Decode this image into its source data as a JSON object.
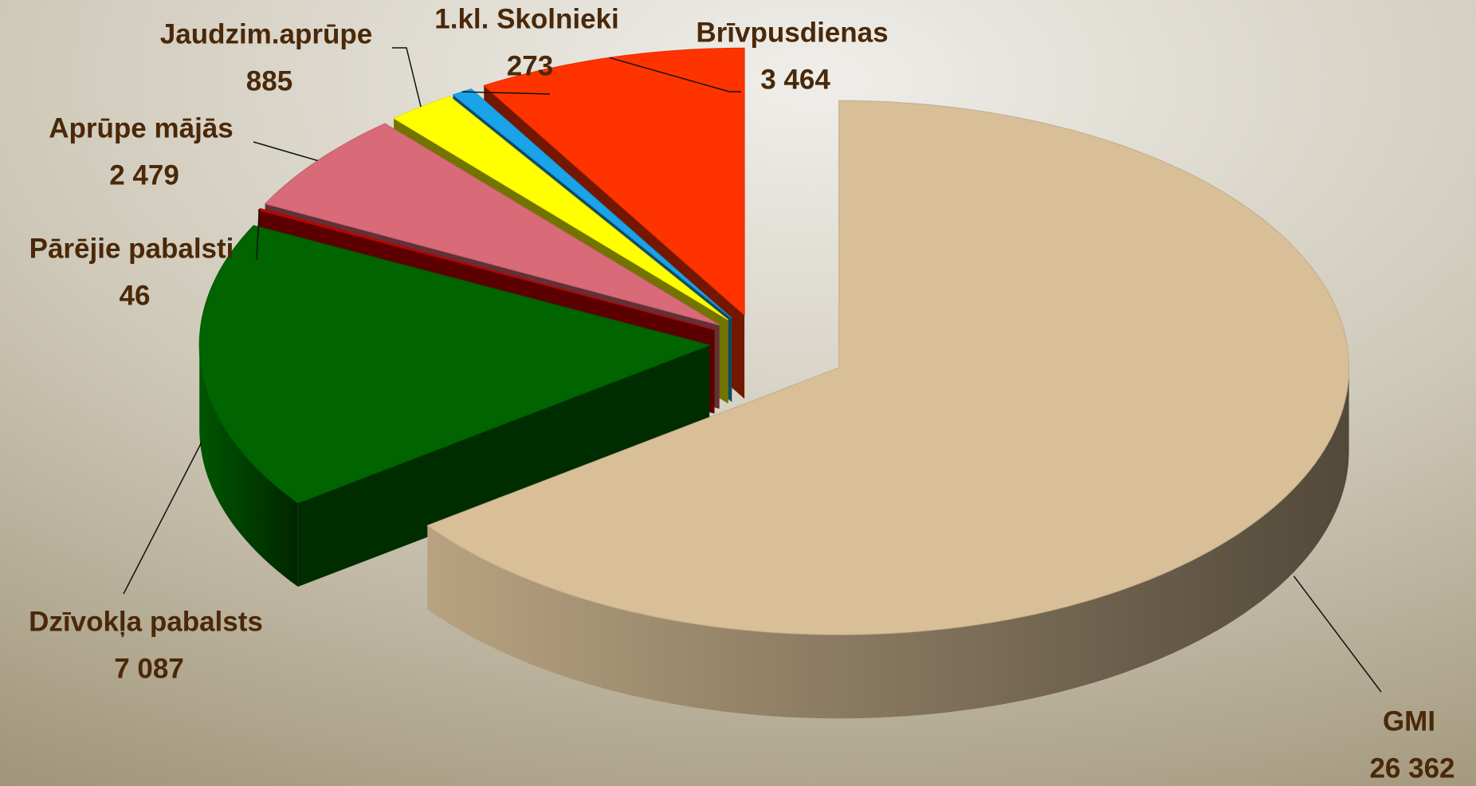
{
  "chart_data": {
    "type": "pie",
    "categories": [
      "GMI",
      "Dzīvokļa pabalsts",
      "Pārējie pabalsti",
      "Aprūpe mājās",
      "Jaudzim.aprūpe",
      "1.kl. Skolnieki",
      "Brīvpusdienas"
    ],
    "values": [
      26362,
      7087,
      46,
      2479,
      885,
      273,
      3464
    ],
    "value_labels": [
      "26 362",
      "7 087",
      "46",
      "2 479",
      "885",
      "273",
      "3 464"
    ],
    "colors": [
      "#d8bf98",
      "#006400",
      "#c80000",
      "#d96b78",
      "#ffff00",
      "#1aa3e8",
      "#ff3300"
    ]
  }
}
